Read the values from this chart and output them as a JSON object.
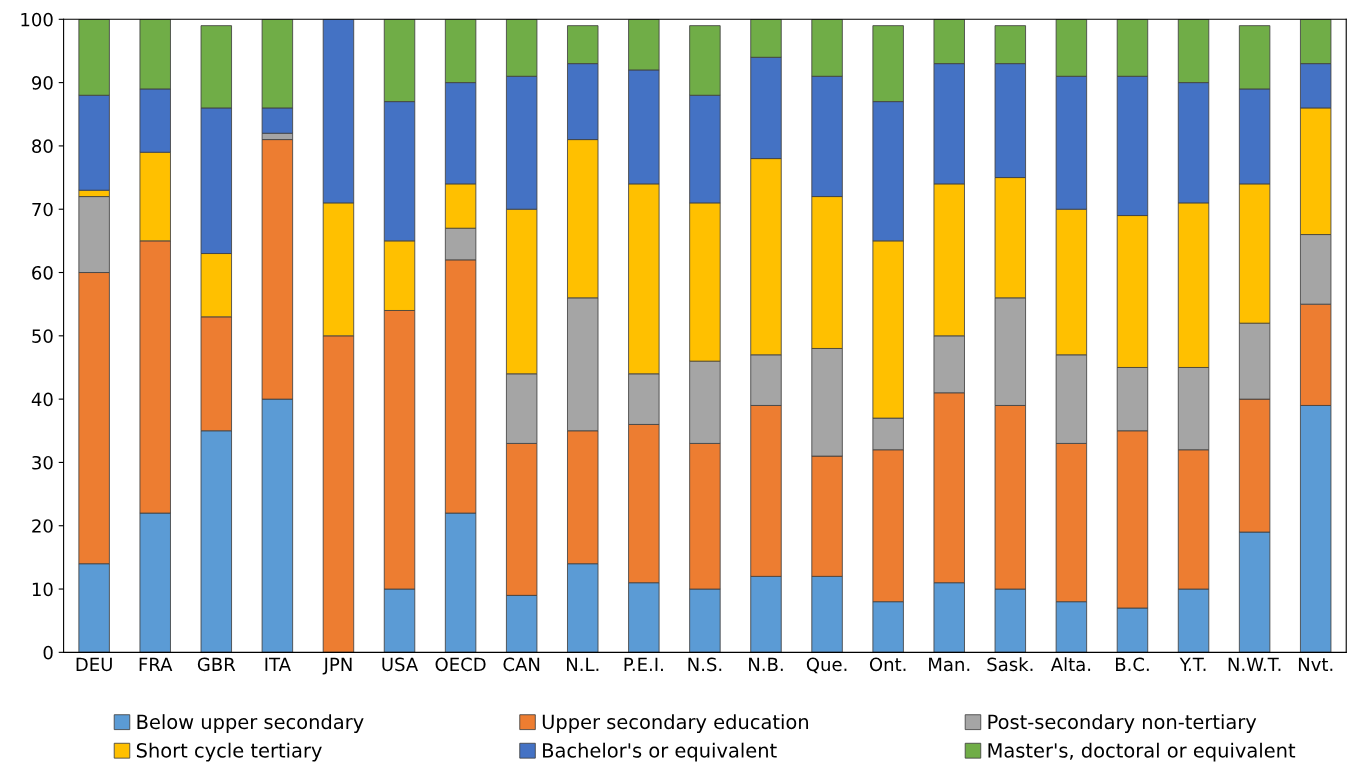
{
  "chart_data": {
    "type": "bar",
    "stacked": true,
    "categories": [
      "DEU",
      "FRA",
      "GBR",
      "ITA",
      "JPN",
      "USA",
      "OECD",
      "CAN",
      "N.L.",
      "P.E.I.",
      "N.S.",
      "N.B.",
      "Que.",
      "Ont.",
      "Man.",
      "Sask.",
      "Alta.",
      "B.C.",
      "Y.T.",
      "N.W.T.",
      "Nvt."
    ],
    "series": [
      {
        "name": "Below upper secondary",
        "color": "#5b9bd5",
        "values": [
          14,
          22,
          35,
          40,
          null,
          10,
          22,
          9,
          14,
          11,
          10,
          12,
          12,
          8,
          11,
          10,
          8,
          7,
          10,
          19,
          39
        ]
      },
      {
        "name": "Upper secondary education",
        "color": "#ed7d31",
        "values": [
          46,
          43,
          18,
          41,
          50,
          44,
          40,
          24,
          21,
          25,
          23,
          27,
          19,
          24,
          30,
          29,
          25,
          28,
          22,
          21,
          16
        ]
      },
      {
        "name": "Post-secondary non-tertiary",
        "color": "#a5a5a5",
        "values": [
          12,
          null,
          null,
          1,
          null,
          null,
          5,
          11,
          21,
          8,
          13,
          8,
          17,
          5,
          9,
          17,
          14,
          10,
          13,
          12,
          11
        ]
      },
      {
        "name": "Short cycle tertiary",
        "color": "#ffc000",
        "values": [
          1,
          14,
          10,
          null,
          21,
          11,
          7,
          26,
          25,
          30,
          25,
          31,
          24,
          28,
          24,
          19,
          23,
          24,
          26,
          22,
          20
        ]
      },
      {
        "name": "Bachelor's or equivalent",
        "color": "#4472c4",
        "values": [
          15,
          10,
          23,
          4,
          29,
          22,
          16,
          21,
          12,
          18,
          17,
          16,
          19,
          22,
          19,
          18,
          21,
          22,
          19,
          15,
          7
        ]
      },
      {
        "name": "Master's, doctoral or equivalent",
        "color": "#70ad47",
        "values": [
          12,
          11,
          13,
          14,
          null,
          13,
          10,
          9,
          6,
          8,
          11,
          6,
          9,
          12,
          7,
          6,
          9,
          9,
          10,
          10,
          7
        ]
      }
    ],
    "ylim": [
      0,
      100
    ],
    "yticks": [
      0,
      10,
      20,
      30,
      40,
      50,
      60,
      70,
      80,
      90,
      100
    ],
    "grid": false,
    "legend": "bottom"
  }
}
